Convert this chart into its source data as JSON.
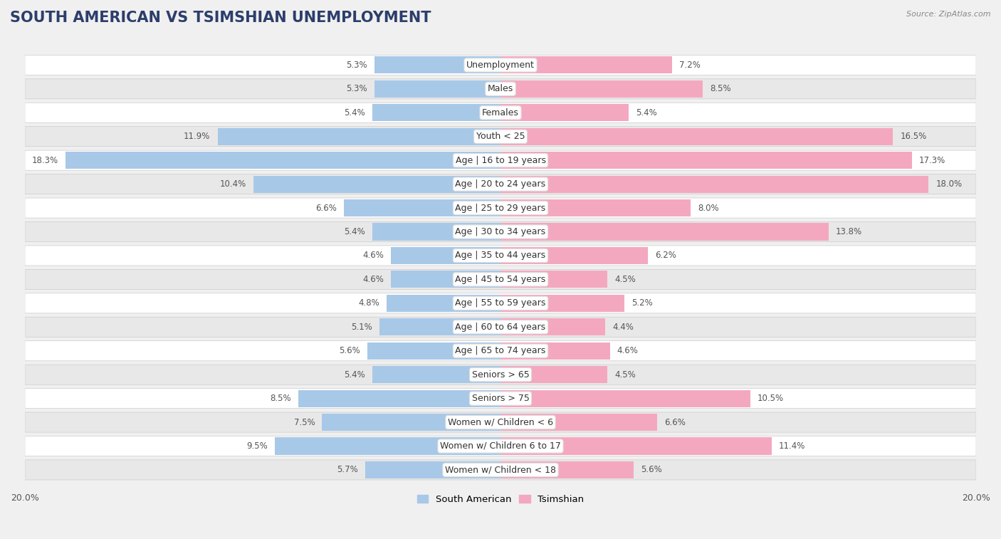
{
  "title": "South American vs Tsimshian Unemployment",
  "source": "Source: ZipAtlas.com",
  "categories": [
    "Unemployment",
    "Males",
    "Females",
    "Youth < 25",
    "Age | 16 to 19 years",
    "Age | 20 to 24 years",
    "Age | 25 to 29 years",
    "Age | 30 to 34 years",
    "Age | 35 to 44 years",
    "Age | 45 to 54 years",
    "Age | 55 to 59 years",
    "Age | 60 to 64 years",
    "Age | 65 to 74 years",
    "Seniors > 65",
    "Seniors > 75",
    "Women w/ Children < 6",
    "Women w/ Children 6 to 17",
    "Women w/ Children < 18"
  ],
  "south_american": [
    5.3,
    5.3,
    5.4,
    11.9,
    18.3,
    10.4,
    6.6,
    5.4,
    4.6,
    4.6,
    4.8,
    5.1,
    5.6,
    5.4,
    8.5,
    7.5,
    9.5,
    5.7
  ],
  "tsimshian": [
    7.2,
    8.5,
    5.4,
    16.5,
    17.3,
    18.0,
    8.0,
    13.8,
    6.2,
    4.5,
    5.2,
    4.4,
    4.6,
    4.5,
    10.5,
    6.6,
    11.4,
    5.6
  ],
  "south_american_color": "#a8c8e8",
  "tsimshian_color": "#f4a8c0",
  "background_color": "#f0f0f0",
  "row_bg_odd": "#ffffff",
  "row_bg_even": "#e8e8e8",
  "max_val": 20.0,
  "title_fontsize": 15,
  "label_fontsize": 9,
  "value_fontsize": 8.5,
  "tick_fontsize": 9
}
